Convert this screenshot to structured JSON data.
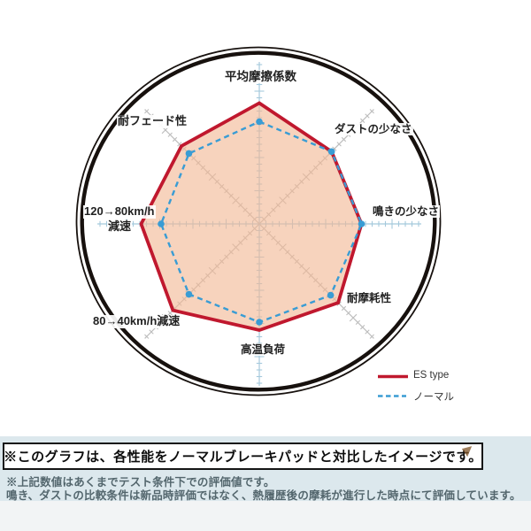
{
  "chart_data": {
    "type": "radar",
    "axes": [
      "平均摩擦係数",
      "ダストの少なさ",
      "鳴きの少なさ",
      "耐摩耗性",
      "高温負荷",
      "80→40km/h減速",
      "120→80km/h減速",
      "耐フェード性"
    ],
    "axis_max": 10,
    "grid": "spoke-ticks",
    "legend_position": "bottom-right",
    "series": [
      {
        "name": "ES type",
        "style": "solid-red",
        "values": [
          9.1,
          7.7,
          7.7,
          8.4,
          8.0,
          9.2,
          8.9,
          8.3
        ]
      },
      {
        "name": "ノーマル",
        "style": "dashed-blue",
        "values": [
          7.7,
          7.7,
          7.7,
          7.6,
          7.4,
          7.5,
          7.4,
          7.5
        ]
      }
    ]
  },
  "labels": {
    "axis_left_line1": "120→80km/h",
    "axis_left_line2": "減速"
  },
  "notice_box": {
    "text": "※このグラフは、各性能をノーマルブレーキパッドと対比したイメージです。"
  },
  "footnotes": {
    "line1": "※上記数値はあくまでテスト条件下での評価値です。",
    "line2": "鳴き、ダストの比較条件は新品時評価ではなく、熱履歴後の摩耗が進行した時点にて評価しています。"
  },
  "colors": {
    "es_red": "#c0182e",
    "normal_blue": "#399cd4",
    "fill_peach": "#f2b894",
    "axis_blue": "#a5c9dc",
    "axis_gray": "#bdbdbd",
    "ring_black": "#17110e",
    "band_bg": "#dce8ed",
    "footer_text": "#53666d"
  }
}
